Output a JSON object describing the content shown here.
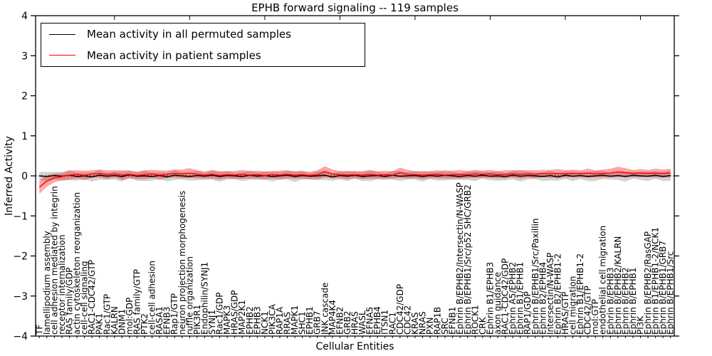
{
  "figure": {
    "title": "EPHB forward signaling -- 119 samples",
    "xlabel": "Cellular Entities",
    "ylabel": "Inferred Activity"
  },
  "legend": {
    "items": [
      {
        "label": "Mean activity in all permuted samples",
        "color": "#000000"
      },
      {
        "label": "Mean activity in patient samples",
        "color": "#ff0000"
      }
    ]
  },
  "chart_data": {
    "type": "line",
    "title": "EPHB forward signaling -- 119 samples",
    "xlabel": "Cellular Entities",
    "ylabel": "Inferred Activity",
    "ylim": [
      -4,
      4
    ],
    "yticks": [
      4,
      3,
      2,
      1,
      0,
      -1,
      -2,
      -3,
      -4
    ],
    "yticklabels": [
      "4",
      "3",
      "2",
      "1",
      "0",
      "−1",
      "−2",
      "−3",
      "−4"
    ],
    "grid": false,
    "zero_line_style": "dotted",
    "legend_position": "upper left",
    "categories": [
      "TF",
      "lamellipodium assembly",
      "cell adhesion mediated by integrin",
      "receptor internalization",
      "RAS family/GDP",
      "actin cytoskeleton reorganization",
      "cell-cell signaling",
      "RAC1-CDC42/GTP",
      "PAK1",
      "Rac1/GTP",
      "KALRN",
      "DNM1",
      "mol:GDP",
      "RAS family/GTP",
      "PTK2",
      "cell-cell adhesion",
      "RASA1",
      "EFNB3",
      "Rap1/GTP",
      "neuron projection morphogenesis",
      "ruffle organization",
      "PIK3R1",
      "Endophilin/SYNJ1",
      "SYNJ1",
      "Rac1/GDP",
      "MAPK3",
      "HRAS/GDP",
      "MAP2K1",
      "EPHB2",
      "EPHB3",
      "NCK1",
      "PIK3CA",
      "RAP1A",
      "RRAS",
      "MAPK1",
      "SHC1",
      "EPHB1",
      "GRB7",
      "JNK cascade",
      "MAP4K4",
      "EFNB2",
      "GRB2",
      "HRAS",
      "WASL",
      "EFNA5",
      "EPHB4",
      "ITSN1",
      "RAC1",
      "CDC42/GDP",
      "CDC42",
      "KRAS",
      "NRAS",
      "PXN",
      "RAP1B",
      "SRC",
      "EFNB1",
      "Ephrin B/EPHB2/Intersectin/N-WASP",
      "Ephrin B/EPHB1/Src/p52 SHC/GRB2",
      "ROCK1",
      "CRK",
      "Ephrin B1/EPHB3",
      "axon guidance",
      "RAC1-CDC42/GDP",
      "Ephrin A5/EPHB2",
      "Ephrin B1/EPHB1",
      "RAP1/GDP",
      "Ephrin B/EPHB1/Src/Paxillin",
      "Ephrin B2/EPHB4",
      "Intersectin/N-WASP",
      "Ephrin B2/EPHB1-2",
      "HRAS/GTP",
      "cell migration",
      "Ephrin B1/EPHB1-2",
      "CDC42/GTP",
      "mol:GTP",
      "endothelial cell migration",
      "Ephrin B/EPHB3",
      "Ephrin B/EPHB2/KALRN",
      "Ephrin B/EPHB2",
      "Ephrin B/EPHB1",
      "PI3K",
      "Ephrin B/EPHB2/RasGAP",
      "Ephrin B1/EPHB1-2/NCK1",
      "Ephrin B/EPHB1/GRB7",
      "Ephrin B/EPHB1/Src"
    ],
    "series": [
      {
        "name": "Mean activity in all permuted samples",
        "color": "#000000",
        "band_color": "rgba(0,0,0,0.18)",
        "values": [
          0.0,
          -0.02,
          0.01,
          -0.01,
          0.02,
          -0.02,
          0.0,
          -0.03,
          0.02,
          -0.01,
          0.01,
          -0.02,
          0.03,
          -0.01,
          0.0,
          -0.02,
          0.01,
          -0.03,
          0.02,
          0.0,
          -0.02,
          0.01,
          -0.01,
          0.02,
          -0.02,
          0.01,
          0.0,
          -0.02,
          0.02,
          -0.01,
          0.01,
          -0.02,
          0.0,
          0.02,
          -0.02,
          0.01,
          -0.01,
          0.0,
          0.02,
          -0.03,
          0.01,
          -0.01,
          0.02,
          -0.02,
          0.0,
          0.01,
          -0.02,
          0.02,
          -0.01,
          0.0,
          0.01,
          -0.02,
          0.01,
          -0.01,
          0.02,
          0.0,
          -0.02,
          0.01,
          -0.01,
          0.02,
          -0.01,
          0.0,
          -0.02,
          0.02,
          -0.01,
          0.01,
          0.0,
          -0.02,
          0.01,
          -0.03,
          0.02,
          -0.01,
          0.01,
          -0.02,
          0.0,
          0.02,
          -0.01,
          0.01,
          -0.02,
          0.02,
          0.0,
          -0.01,
          0.02,
          -0.02,
          0.01
        ],
        "band_halfwidth": [
          0.1,
          0.12,
          0.09,
          0.11,
          0.13,
          0.1,
          0.08,
          0.11,
          0.12,
          0.09,
          0.1,
          0.12,
          0.09,
          0.11,
          0.13,
          0.1,
          0.08,
          0.11,
          0.12,
          0.09,
          0.1,
          0.12,
          0.09,
          0.11,
          0.13,
          0.1,
          0.08,
          0.11,
          0.12,
          0.09,
          0.1,
          0.12,
          0.09,
          0.11,
          0.13,
          0.1,
          0.08,
          0.11,
          0.12,
          0.09,
          0.1,
          0.12,
          0.09,
          0.11,
          0.13,
          0.1,
          0.08,
          0.11,
          0.12,
          0.09,
          0.1,
          0.12,
          0.09,
          0.11,
          0.13,
          0.1,
          0.08,
          0.11,
          0.12,
          0.09,
          0.1,
          0.12,
          0.09,
          0.11,
          0.13,
          0.1,
          0.08,
          0.11,
          0.12,
          0.09,
          0.1,
          0.12,
          0.09,
          0.11,
          0.13,
          0.1,
          0.08,
          0.11,
          0.12,
          0.09,
          0.1,
          0.12,
          0.09,
          0.11,
          0.13
        ]
      },
      {
        "name": "Mean activity in patient samples",
        "color": "#ff0000",
        "band_color": "rgba(255,0,0,0.35)",
        "values": [
          -0.28,
          -0.13,
          -0.05,
          -0.02,
          0.02,
          0.04,
          0.01,
          0.05,
          0.06,
          0.03,
          0.05,
          0.02,
          0.04,
          0.01,
          0.03,
          0.05,
          0.02,
          0.04,
          0.06,
          0.05,
          0.07,
          0.04,
          0.02,
          0.04,
          0.01,
          0.03,
          0.02,
          0.04,
          0.02,
          0.03,
          0.01,
          0.03,
          0.02,
          0.04,
          0.02,
          0.03,
          0.01,
          0.03,
          0.1,
          0.05,
          0.03,
          0.02,
          0.03,
          0.02,
          0.04,
          0.02,
          0.03,
          0.02,
          0.08,
          0.04,
          0.03,
          0.02,
          0.03,
          0.04,
          0.02,
          0.03,
          0.04,
          0.03,
          0.05,
          0.04,
          0.05,
          0.03,
          0.04,
          0.05,
          0.04,
          0.05,
          0.04,
          0.06,
          0.05,
          0.06,
          0.05,
          0.06,
          0.05,
          0.07,
          0.05,
          0.06,
          0.07,
          0.1,
          0.08,
          0.06,
          0.07,
          0.06,
          0.07,
          0.06,
          0.07
        ],
        "band_halfwidth": [
          0.17,
          0.14,
          0.11,
          0.09,
          0.11,
          0.1,
          0.12,
          0.09,
          0.1,
          0.11,
          0.09,
          0.12,
          0.1,
          0.09,
          0.11,
          0.1,
          0.12,
          0.09,
          0.1,
          0.11,
          0.12,
          0.1,
          0.09,
          0.11,
          0.1,
          0.09,
          0.1,
          0.11,
          0.09,
          0.1,
          0.1,
          0.09,
          0.11,
          0.1,
          0.09,
          0.1,
          0.09,
          0.11,
          0.14,
          0.11,
          0.09,
          0.1,
          0.09,
          0.1,
          0.11,
          0.09,
          0.1,
          0.09,
          0.13,
          0.11,
          0.09,
          0.1,
          0.09,
          0.1,
          0.09,
          0.1,
          0.11,
          0.09,
          0.1,
          0.09,
          0.1,
          0.09,
          0.1,
          0.09,
          0.11,
          0.09,
          0.1,
          0.09,
          0.1,
          0.11,
          0.09,
          0.1,
          0.09,
          0.11,
          0.09,
          0.1,
          0.11,
          0.13,
          0.11,
          0.09,
          0.1,
          0.09,
          0.11,
          0.1,
          0.11
        ]
      }
    ]
  }
}
